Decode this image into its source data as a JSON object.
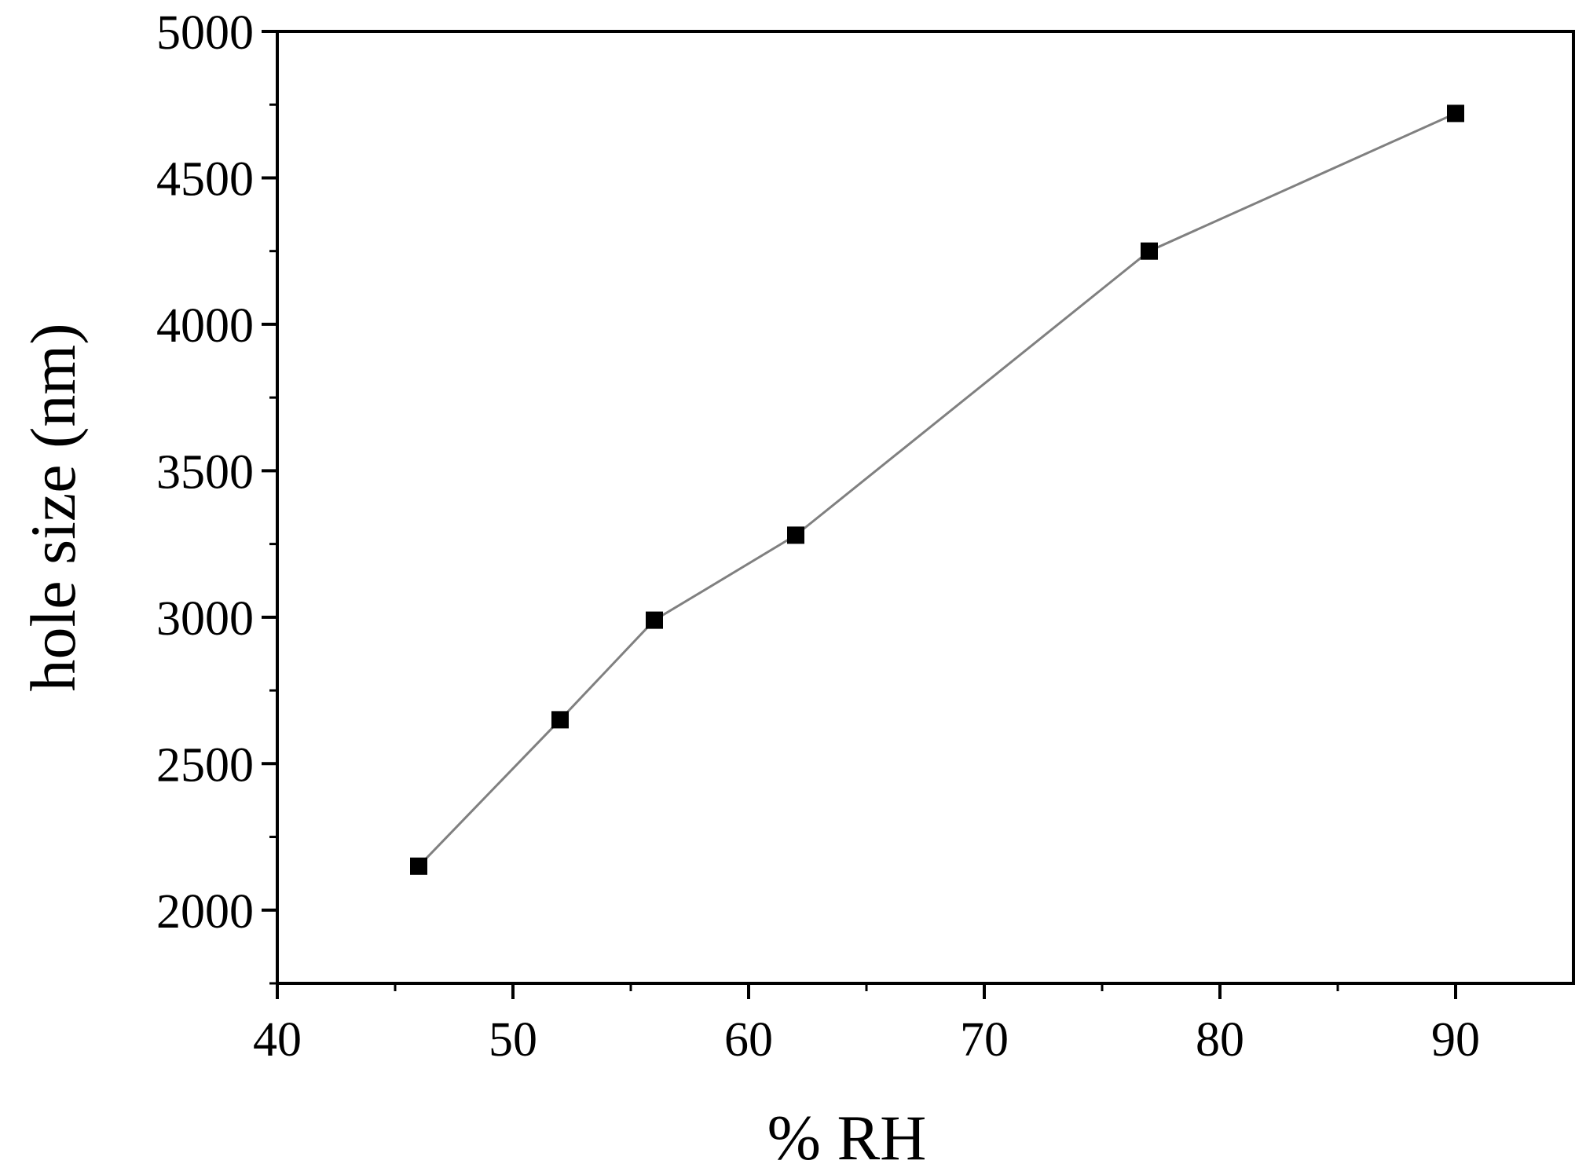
{
  "chart_data": {
    "type": "line",
    "title": "",
    "xlabel": "% RH",
    "ylabel": "hole size (nm)",
    "xlim": [
      40,
      95
    ],
    "ylim": [
      1750,
      5000
    ],
    "x_ticks": [
      40,
      50,
      60,
      70,
      80,
      90
    ],
    "y_ticks": [
      2000,
      2500,
      3000,
      3500,
      4000,
      4500,
      5000
    ],
    "grid": false,
    "legend": "none",
    "series": [
      {
        "marker": "square",
        "color": "#000000",
        "line_color": "#808080",
        "x": [
          46,
          52,
          56,
          62,
          77,
          90
        ],
        "y": [
          2150,
          2650,
          2990,
          3280,
          4250,
          4720
        ]
      }
    ]
  }
}
